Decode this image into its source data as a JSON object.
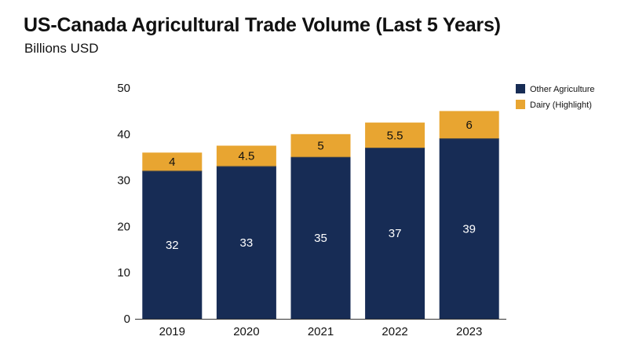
{
  "title": "US-Canada Agricultural Trade Volume (Last 5 Years)",
  "subtitle": "Billions USD",
  "colors": {
    "other": "#172c55",
    "dairy": "#e8a531"
  },
  "chart_data": {
    "type": "bar",
    "stacked": true,
    "categories": [
      "2019",
      "2020",
      "2021",
      "2022",
      "2023"
    ],
    "series": [
      {
        "name": "Other Agriculture",
        "values": [
          32,
          33,
          35,
          37,
          39
        ]
      },
      {
        "name": "Dairy (Highlight)",
        "values": [
          4,
          4.5,
          5,
          5.5,
          6
        ]
      }
    ],
    "data_labels": {
      "other": [
        "32",
        "33",
        "35",
        "37",
        "39"
      ],
      "dairy": [
        "4",
        "4.5",
        "5",
        "5.5",
        "6"
      ]
    },
    "yticks": [
      "0",
      "10",
      "20",
      "30",
      "40",
      "50"
    ],
    "ylim": [
      0,
      50
    ],
    "grid": false,
    "legend_position": "top-right"
  }
}
